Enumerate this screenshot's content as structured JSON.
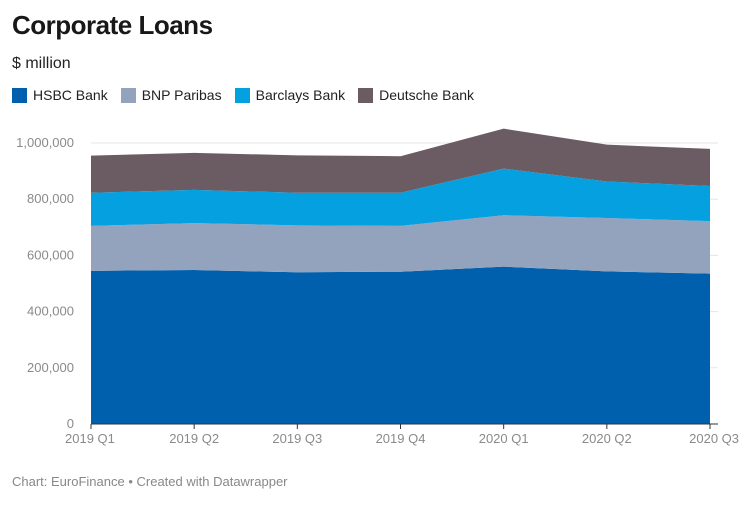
{
  "header": {
    "title": "Corporate Loans",
    "subtitle": "$ million"
  },
  "footer": {
    "credit": "Chart: EuroFinance • Created with Datawrapper"
  },
  "chart_data": {
    "type": "area",
    "stacked": true,
    "title": "Corporate Loans",
    "subtitle": "$ million",
    "categories": [
      "2019 Q1",
      "2019 Q2",
      "2019 Q3",
      "2019 Q4",
      "2020 Q1",
      "2020 Q2",
      "2020 Q3"
    ],
    "ylim": [
      0,
      1000000
    ],
    "yticks": [
      0,
      200000,
      400000,
      600000,
      800000,
      1000000
    ],
    "ytick_labels": [
      "0",
      "200,000",
      "400,000",
      "600,000",
      "800,000",
      "1,000,000"
    ],
    "grid": true,
    "legend_position": "top-left",
    "series": [
      {
        "name": "HSBC Bank",
        "color": "#0060ae",
        "values": [
          545000,
          548000,
          540000,
          542000,
          560000,
          543000,
          535000
        ]
      },
      {
        "name": "BNP Paribas",
        "color": "#93a3bd",
        "values": [
          160000,
          167000,
          167000,
          163000,
          183000,
          190000,
          187000
        ]
      },
      {
        "name": "Barclays Bank",
        "color": "#04a0e0",
        "values": [
          118000,
          118000,
          116000,
          118000,
          166000,
          130000,
          125000
        ]
      },
      {
        "name": "Deutsche Bank",
        "color": "#6b5b62",
        "values": [
          132000,
          132000,
          133000,
          130000,
          142000,
          131000,
          132000
        ]
      }
    ]
  }
}
